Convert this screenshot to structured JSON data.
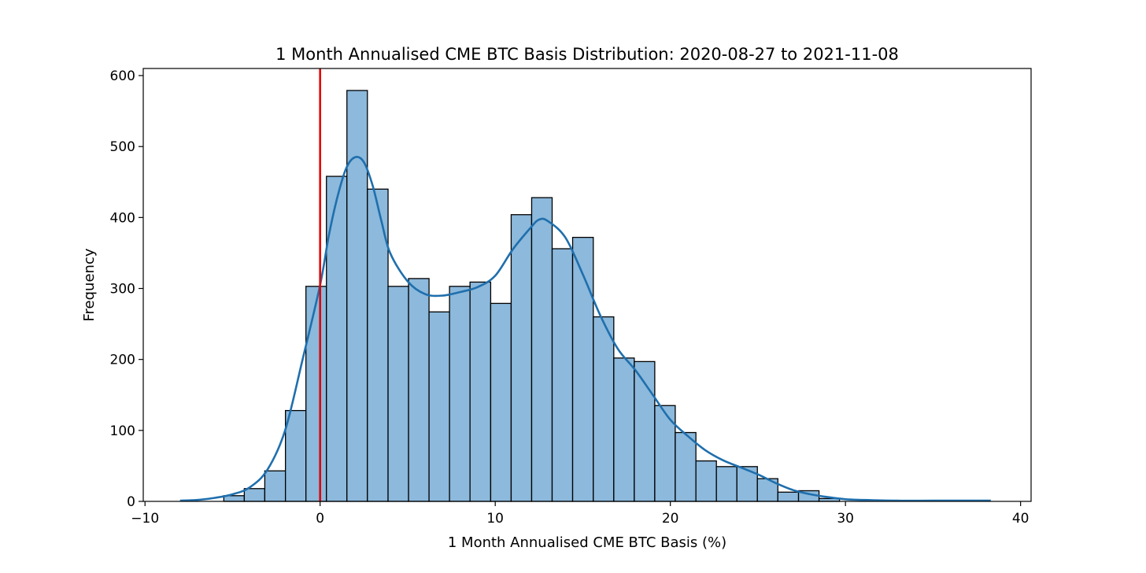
{
  "chart_data": {
    "type": "bar",
    "title": "1 Month Annualised CME BTC Basis Distribution: 2020-08-27 to 2021-11-08",
    "xlabel": "1 Month Annualised CME BTC Basis (%)",
    "ylabel": "Frequency",
    "xlim": [
      -10.1,
      40.6
    ],
    "ylim": [
      0,
      610
    ],
    "xticks": [
      -10,
      0,
      10,
      20,
      30,
      40
    ],
    "xtick_labels": [
      "−10",
      "0",
      "10",
      "20",
      "30",
      "40"
    ],
    "yticks": [
      0,
      100,
      200,
      300,
      400,
      500,
      600
    ],
    "ytick_labels": [
      "0",
      "100",
      "200",
      "300",
      "400",
      "500",
      "600"
    ],
    "grid": false,
    "bins": {
      "edges": [
        -5.5,
        -4.33,
        -3.16,
        -1.98,
        -0.81,
        0.36,
        1.53,
        2.7,
        3.88,
        5.05,
        6.22,
        7.39,
        8.56,
        9.74,
        10.91,
        12.08,
        13.25,
        14.42,
        15.6,
        16.77,
        17.94,
        19.11,
        20.28,
        21.46,
        22.63,
        23.8,
        24.97,
        26.14,
        27.32,
        28.49,
        29.66
      ],
      "counts": [
        8,
        18,
        43,
        128,
        303,
        458,
        579,
        440,
        303,
        314,
        267,
        303,
        309,
        279,
        404,
        428,
        356,
        372,
        260,
        202,
        197,
        135,
        97,
        57,
        49,
        49,
        32,
        13,
        15,
        4
      ],
      "color": "#8cb9dc",
      "edge_color": "#000000"
    },
    "kde": {
      "color": "#1f6fad",
      "x": [
        -8.0,
        -7.0,
        -6.0,
        -5.0,
        -4.0,
        -3.0,
        -2.0,
        -1.0,
        0.0,
        0.5,
        1.0,
        1.5,
        2.0,
        2.5,
        3.0,
        3.5,
        4.0,
        5.0,
        6.0,
        7.0,
        8.0,
        9.0,
        10.0,
        11.0,
        12.0,
        12.5,
        13.0,
        14.0,
        15.0,
        16.0,
        17.0,
        18.0,
        19.0,
        20.0,
        21.0,
        22.0,
        23.0,
        24.0,
        25.0,
        26.0,
        27.0,
        28.0,
        29.0,
        30.0,
        31.0,
        33.0,
        35.0,
        38.3
      ],
      "y": [
        1,
        2,
        5,
        10,
        20,
        45,
        100,
        200,
        305,
        375,
        430,
        470,
        485,
        478,
        445,
        395,
        350,
        310,
        292,
        290,
        295,
        302,
        318,
        355,
        385,
        397,
        395,
        372,
        320,
        262,
        215,
        185,
        150,
        115,
        92,
        72,
        58,
        48,
        38,
        26,
        16,
        10,
        6,
        3,
        2,
        1,
        1,
        1
      ]
    },
    "reference_line": {
      "x": 0,
      "color": "#e00000"
    }
  }
}
